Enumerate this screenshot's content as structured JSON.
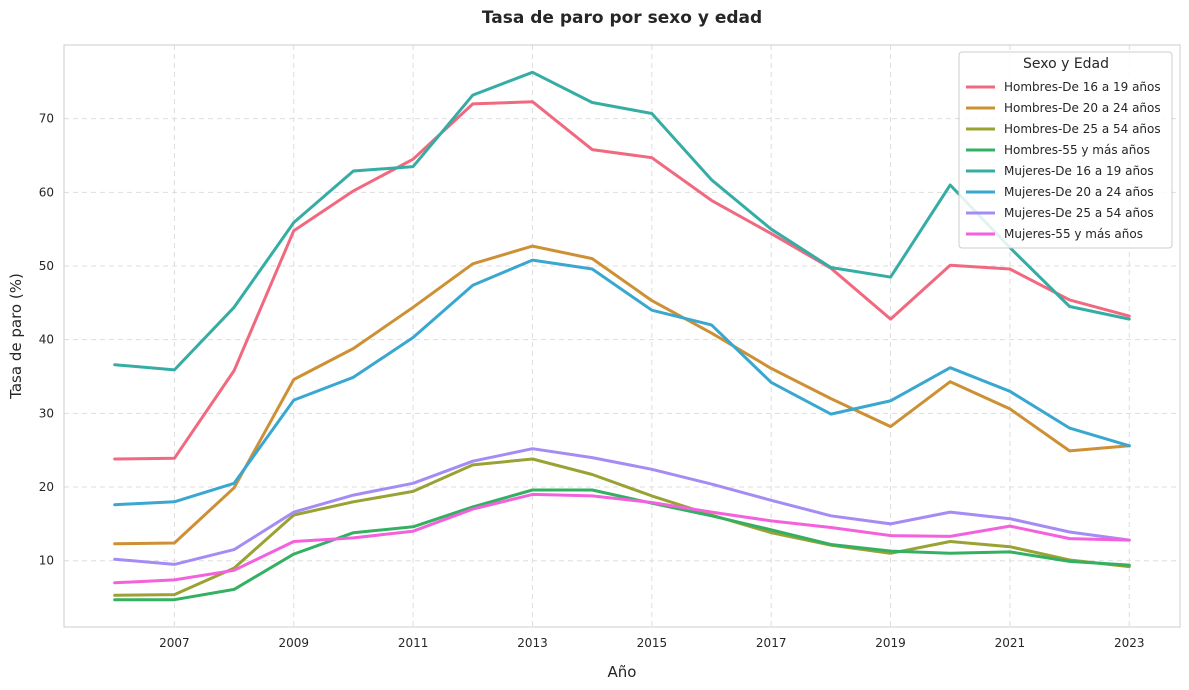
{
  "chart_data": {
    "type": "line",
    "title": "Tasa de paro por sexo y edad",
    "xlabel": "Año",
    "ylabel": "Tasa de paro (%)",
    "x": [
      2006,
      2007,
      2008,
      2009,
      2010,
      2011,
      2012,
      2013,
      2014,
      2015,
      2016,
      2017,
      2018,
      2019,
      2020,
      2021,
      2022,
      2023
    ],
    "xticks": [
      "2007",
      "2009",
      "2011",
      "2013",
      "2015",
      "2017",
      "2019",
      "2021",
      "2023"
    ],
    "yticks": [
      "10",
      "20",
      "30",
      "40",
      "50",
      "60",
      "70"
    ],
    "xlim": [
      2005.15,
      2023.85
    ],
    "ylim": [
      1.0,
      80.0
    ],
    "grid": true,
    "legend": {
      "title": "Sexo y Edad",
      "placement": "top-right"
    },
    "series": [
      {
        "name": "Hombres-De 16 a 19 años",
        "color": "#f0697f",
        "values": [
          23.8,
          23.9,
          35.8,
          54.8,
          60.2,
          64.5,
          72.0,
          72.3,
          65.8,
          64.7,
          58.9,
          54.4,
          49.7,
          42.8,
          50.1,
          49.6,
          45.4,
          43.2
        ]
      },
      {
        "name": "Hombres-De 20 a 24 años",
        "color": "#ce9034",
        "values": [
          12.3,
          12.4,
          19.9,
          34.6,
          38.8,
          44.4,
          50.3,
          52.7,
          51.0,
          45.3,
          40.9,
          36.1,
          32.0,
          28.2,
          34.3,
          30.6,
          24.9,
          25.6
        ]
      },
      {
        "name": "Hombres-De 25 a 54 años",
        "color": "#99a233",
        "values": [
          5.3,
          5.4,
          9.0,
          16.2,
          18.0,
          19.4,
          23.0,
          23.8,
          21.7,
          18.8,
          16.2,
          13.8,
          12.1,
          11.0,
          12.6,
          11.9,
          10.1,
          9.2
        ]
      },
      {
        "name": "Hombres-55 y más años",
        "color": "#33b062",
        "values": [
          4.7,
          4.7,
          6.1,
          10.9,
          13.8,
          14.6,
          17.3,
          19.6,
          19.6,
          17.8,
          16.1,
          14.2,
          12.2,
          11.3,
          11.0,
          11.2,
          9.9,
          9.4
        ]
      },
      {
        "name": "Mujeres-De 16 a 19 años",
        "color": "#36ada4",
        "values": [
          36.6,
          35.9,
          44.4,
          55.9,
          62.9,
          63.5,
          73.2,
          76.3,
          72.2,
          70.7,
          61.7,
          55.0,
          49.8,
          48.5,
          61.0,
          52.5,
          44.5,
          42.8
        ]
      },
      {
        "name": "Mujeres-De 20 a 24 años",
        "color": "#39a7d0",
        "values": [
          17.6,
          18.0,
          20.5,
          31.8,
          34.9,
          40.3,
          47.4,
          50.8,
          49.6,
          44.0,
          42.0,
          34.2,
          29.9,
          31.7,
          36.2,
          33.0,
          28.0,
          25.6
        ]
      },
      {
        "name": "Mujeres-De 25 a 54 años",
        "color": "#a48cf4",
        "values": [
          10.2,
          9.5,
          11.5,
          16.6,
          18.9,
          20.5,
          23.5,
          25.2,
          24.0,
          22.4,
          20.4,
          18.2,
          16.1,
          15.0,
          16.6,
          15.7,
          13.9,
          12.8
        ]
      },
      {
        "name": "Mujeres-55 y más años",
        "color": "#f461dd",
        "values": [
          7.0,
          7.4,
          8.7,
          12.6,
          13.1,
          14.0,
          17.0,
          19.0,
          18.8,
          17.9,
          16.6,
          15.4,
          14.5,
          13.4,
          13.3,
          14.7,
          13.0,
          12.8
        ]
      }
    ]
  }
}
